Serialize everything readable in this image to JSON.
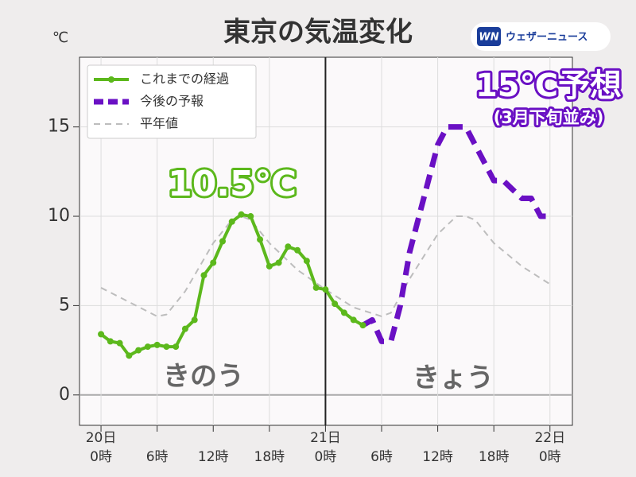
{
  "chart_data": {
    "type": "line",
    "title": "東京の気温変化",
    "logo": "ウェザーニュース",
    "logo_icon": "WN",
    "ylabel": "℃",
    "xlim": [
      -2.3,
      50.4
    ],
    "ylim": [
      -1.7,
      18.9
    ],
    "yticks": [
      0,
      5,
      10,
      15
    ],
    "xticks": [
      {
        "value": 0,
        "label": [
          "20日",
          "0時"
        ]
      },
      {
        "value": 6,
        "label": [
          "6時"
        ]
      },
      {
        "value": 12,
        "label": [
          "12時"
        ]
      },
      {
        "value": 18,
        "label": [
          "18時"
        ]
      },
      {
        "value": 24,
        "label": [
          "21日",
          "0時"
        ]
      },
      {
        "value": 30,
        "label": [
          "6時"
        ]
      },
      {
        "value": 36,
        "label": [
          "12時"
        ]
      },
      {
        "value": 42,
        "label": [
          "18時"
        ]
      },
      {
        "value": 48,
        "label": [
          "22日",
          "0時"
        ]
      }
    ],
    "grid": true,
    "divider_x": 24,
    "legend": "top-left",
    "series": [
      {
        "name": "これまでの経過",
        "color": "#5cb81c",
        "style": "solid-marker",
        "x": [
          0,
          1,
          2,
          3,
          4,
          5,
          6,
          7,
          8,
          9,
          10,
          11,
          12,
          13,
          14,
          15,
          16,
          17,
          18,
          19,
          20,
          21,
          22,
          23,
          24,
          25,
          26,
          27,
          28
        ],
        "values": [
          3.4,
          3.0,
          2.9,
          2.2,
          2.5,
          2.7,
          2.8,
          2.7,
          2.7,
          3.7,
          4.2,
          6.7,
          7.4,
          8.6,
          9.7,
          10.1,
          10.0,
          8.7,
          7.2,
          7.4,
          8.3,
          8.1,
          7.5,
          6.0,
          5.9,
          5.1,
          4.6,
          4.2,
          3.9
        ]
      },
      {
        "name": "今後の予報",
        "color": "#6a10c4",
        "style": "thick-dash",
        "x": [
          28,
          29,
          30,
          31,
          32,
          33,
          34,
          35,
          36,
          37,
          38,
          39,
          40,
          41,
          42,
          43,
          44,
          45,
          46,
          47,
          48
        ],
        "values": [
          3.9,
          4.2,
          3.0,
          3.0,
          5.0,
          8.0,
          10.0,
          12.0,
          14.0,
          15.0,
          15.0,
          15.0,
          14.0,
          13.0,
          12.0,
          12.0,
          11.5,
          11.0,
          11.0,
          10.0,
          10.0
        ]
      },
      {
        "name": "平年値",
        "color": "#bdbdbd",
        "style": "thin-dash",
        "x": [
          0,
          3,
          6,
          7,
          9,
          12,
          14,
          15,
          16,
          18,
          21,
          24,
          27,
          30,
          31,
          33,
          36,
          38,
          39,
          40,
          42,
          45,
          48
        ],
        "values": [
          6.0,
          5.2,
          4.4,
          4.5,
          5.8,
          8.5,
          9.8,
          10.0,
          9.8,
          8.5,
          7.0,
          5.9,
          4.9,
          4.4,
          4.6,
          6.5,
          9.0,
          10.0,
          10.0,
          9.8,
          8.5,
          7.2,
          6.2
        ]
      }
    ],
    "annotations": {
      "max_observed": "10.5℃",
      "forecast": "15℃予想",
      "forecast_note": "(3月下旬並み)",
      "yesterday": "きのう",
      "today": "きょう"
    }
  }
}
